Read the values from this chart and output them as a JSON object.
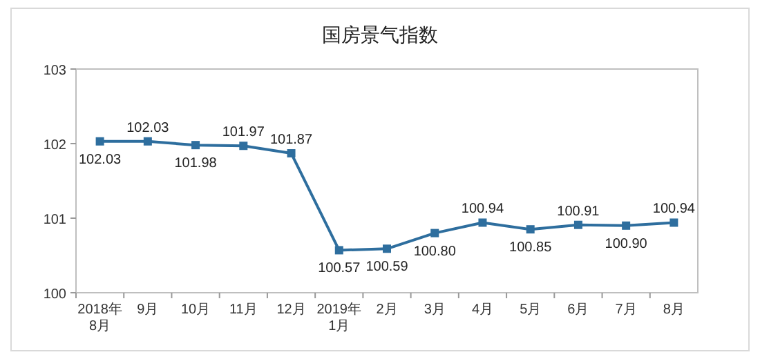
{
  "chart_data": {
    "type": "line",
    "title": "国房景气指数",
    "categories": [
      "2018年\n8月",
      "9月",
      "10月",
      "11月",
      "12月",
      "2019年\n1月",
      "2月",
      "3月",
      "4月",
      "5月",
      "6月",
      "7月",
      "8月"
    ],
    "series": [
      {
        "color": "#2e6e9e",
        "values": [
          102.03,
          102.03,
          101.98,
          101.97,
          101.87,
          100.57,
          100.59,
          100.8,
          100.94,
          100.85,
          100.91,
          100.9,
          100.94
        ],
        "value_labels": [
          "102.03",
          "102.03",
          "101.98",
          "101.97",
          "101.87",
          "100.57",
          "100.59",
          "100.80",
          "100.94",
          "100.85",
          "100.91",
          "100.90",
          "100.94"
        ]
      }
    ],
    "ylim": [
      100,
      103
    ],
    "yticks": [
      100,
      101,
      102,
      103
    ],
    "marker": "square",
    "grid": false
  }
}
